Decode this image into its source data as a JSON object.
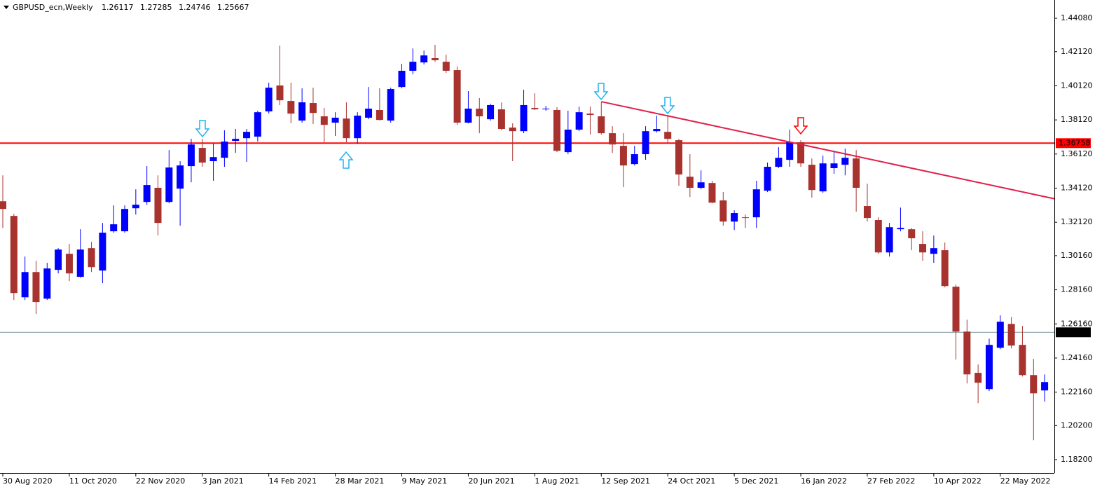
{
  "chart_data": {
    "type": "candlestick",
    "symbol": "GBPUSD_ecn,Weekly",
    "ohlc": [
      1.26117,
      1.27285,
      1.24746,
      1.25667
    ],
    "categories": [
      "30 Aug 2020",
      null,
      null,
      null,
      null,
      null,
      "11 Oct 2020",
      null,
      null,
      null,
      null,
      null,
      "22 Nov 2020",
      null,
      null,
      null,
      null,
      null,
      "3 Jan 2021",
      null,
      null,
      null,
      null,
      null,
      "14 Feb 2021",
      null,
      null,
      null,
      null,
      null,
      "28 Mar 2021",
      null,
      null,
      null,
      null,
      null,
      "9 May 2021",
      null,
      null,
      null,
      null,
      null,
      "20 Jun 2021",
      null,
      null,
      null,
      null,
      null,
      "1 Aug 2021",
      null,
      null,
      null,
      null,
      null,
      "12 Sep 2021",
      null,
      null,
      null,
      null,
      null,
      "24 Oct 2021",
      null,
      null,
      null,
      null,
      null,
      "5 Dec 2021",
      null,
      null,
      null,
      null,
      null,
      "16 Jan 2022",
      null,
      null,
      null,
      null,
      null,
      "27 Feb 2022",
      null,
      null,
      null,
      null,
      null,
      "10 Apr 2022",
      null,
      null,
      null,
      null,
      null,
      "22 May 2022",
      null,
      null,
      null,
      null
    ],
    "open": [
      1.3335,
      1.3249,
      1.2772,
      1.292,
      1.2764,
      1.2933,
      1.3027,
      1.2892,
      1.306,
      1.2929,
      1.3159,
      1.3159,
      1.3294,
      1.3331,
      1.3414,
      1.3331,
      1.3409,
      1.3541,
      1.3648,
      1.357,
      1.359,
      1.3689,
      1.3705,
      1.3714,
      1.3862,
      1.4014,
      1.3923,
      1.3808,
      1.3911,
      1.3833,
      1.3796,
      1.382,
      1.3705,
      1.3825,
      1.387,
      1.3808,
      1.4005,
      1.41,
      1.4149,
      1.4174,
      1.4153,
      1.4104,
      1.3796,
      1.3878,
      1.3816,
      1.3874,
      1.3767,
      1.3746,
      1.3882,
      1.3874,
      1.387,
      1.3623,
      1.3755,
      1.3849,
      1.3833,
      1.3734,
      1.366,
      1.3553,
      1.3611,
      1.3746,
      1.3742,
      1.3693,
      1.3479,
      1.3414,
      1.3442,
      1.334,
      1.3216,
      1.3241,
      1.3241,
      1.3397,
      1.3537,
      1.3578,
      1.3681,
      1.3549,
      1.3393,
      1.3529,
      1.3549,
      1.3586,
      1.3307,
      1.3225,
      1.3035,
      1.3171,
      1.3171,
      1.3085,
      1.3027,
      1.3048,
      1.2834,
      1.2571,
      1.2329,
      1.2234,
      1.2476,
      1.2616,
      1.2493,
      1.2316,
      1.2226
    ],
    "high": [
      1.3487,
      1.3261,
      1.3011,
      1.2986,
      1.2974,
      1.306,
      1.3085,
      1.3171,
      1.3097,
      1.3208,
      1.3311,
      1.3311,
      1.3405,
      1.3541,
      1.3487,
      1.3635,
      1.357,
      1.3701,
      1.3701,
      1.3672,
      1.3751,
      1.3759,
      1.3759,
      1.3866,
      1.403,
      1.4248,
      1.403,
      1.3997,
      1.4001,
      1.3882,
      1.3857,
      1.3915,
      1.3857,
      1.4005,
      1.3997,
      1.4001,
      1.4141,
      1.4231,
      1.4219,
      1.4252,
      1.4194,
      1.4125,
      1.3981,
      1.394,
      1.3907,
      1.3915,
      1.3792,
      1.3989,
      1.3968,
      1.3894,
      1.3886,
      1.3866,
      1.389,
      1.389,
      1.3919,
      1.3775,
      1.3734,
      1.366,
      1.3775,
      1.3837,
      1.3841,
      1.3701,
      1.3611,
      1.3516,
      1.3455,
      1.3389,
      1.3282,
      1.3257,
      1.3455,
      1.3562,
      1.3652,
      1.3755,
      1.3693,
      1.3586,
      1.3603,
      1.3631,
      1.3644,
      1.3635,
      1.3438,
      1.3241,
      1.3208,
      1.3298,
      1.3179,
      1.3159,
      1.3134,
      1.3093,
      1.2846,
      1.2641,
      1.2378,
      1.253,
      1.2666,
      1.2657,
      1.2604,
      1.2411,
      1.232
    ],
    "low": [
      1.3179,
      1.2756,
      1.2756,
      1.2674,
      1.2756,
      1.2912,
      1.2867,
      1.2887,
      1.292,
      1.2855,
      1.3151,
      1.3151,
      1.3257,
      1.3315,
      1.3134,
      1.3323,
      1.3192,
      1.3446,
      1.3537,
      1.3455,
      1.3537,
      1.3619,
      1.3566,
      1.3685,
      1.3849,
      1.3899,
      1.3792,
      1.3796,
      1.3788,
      1.3681,
      1.3718,
      1.3681,
      1.3672,
      1.3816,
      1.3808,
      1.3796,
      1.3997,
      1.4079,
      1.4137,
      1.4153,
      1.4088,
      1.3783,
      1.3792,
      1.3734,
      1.3808,
      1.3751,
      1.357,
      1.3734,
      1.387,
      1.3866,
      1.3623,
      1.3611,
      1.3746,
      1.3726,
      1.3726,
      1.3619,
      1.3418,
      1.3545,
      1.3578,
      1.3738,
      1.3672,
      1.3426,
      1.336,
      1.3405,
      1.3323,
      1.3192,
      1.3167,
      1.3179,
      1.3179,
      1.3389,
      1.3529,
      1.3537,
      1.3537,
      1.3356,
      1.3385,
      1.3496,
      1.3487,
      1.3274,
      1.3216,
      1.3027,
      1.3011,
      1.3159,
      1.3048,
      1.2986,
      1.2974,
      1.283,
      1.2407,
      1.2267,
      1.2152,
      1.2222,
      1.2468,
      1.2472,
      1.2308,
      1.1934,
      1.216
    ],
    "close": [
      1.329,
      1.2797,
      1.292,
      1.2744,
      1.2941,
      1.3052,
      1.2912,
      1.3052,
      1.2949,
      1.3151,
      1.32,
      1.329,
      1.3315,
      1.343,
      1.3208,
      1.3533,
      1.3545,
      1.3668,
      1.3562,
      1.3594,
      1.3685,
      1.3701,
      1.3742,
      1.3857,
      1.4001,
      1.3927,
      1.3849,
      1.3915,
      1.3853,
      1.3783,
      1.3825,
      1.3705,
      1.3837,
      1.3878,
      1.3812,
      1.3993,
      1.41,
      1.4153,
      1.419,
      1.4162,
      1.41,
      1.3796,
      1.3878,
      1.3833,
      1.3899,
      1.3759,
      1.3746,
      1.3899,
      1.3874,
      1.3878,
      1.3631,
      1.3755,
      1.3857,
      1.3841,
      1.3734,
      1.3668,
      1.3545,
      1.3611,
      1.3746,
      1.3759,
      1.3701,
      1.3492,
      1.3414,
      1.3446,
      1.3327,
      1.3216,
      1.3266,
      1.3237,
      1.3405,
      1.3537,
      1.359,
      1.3681,
      1.3557,
      1.3401,
      1.3557,
      1.3557,
      1.359,
      1.3414,
      1.3237,
      1.3035,
      1.3183,
      1.3179,
      1.3118,
      1.3035,
      1.306,
      1.2838,
      1.2571,
      1.232,
      1.2271,
      1.2493,
      1.2629,
      1.2489,
      1.2316,
      1.2209,
      1.2275
    ],
    "up_color": "#0000ff",
    "down_color": "#a8322d",
    "ylim": [
      1.1742,
      1.4515
    ],
    "yticks": [
      {
        "value": 1.4408,
        "label": "1.44080"
      },
      {
        "value": 1.4212,
        "label": "1.42120"
      },
      {
        "value": 1.4012,
        "label": "1.40120"
      },
      {
        "value": 1.3812,
        "label": "1.38120"
      },
      {
        "value": 1.3612,
        "label": "1.36120"
      },
      {
        "value": 1.3412,
        "label": "1.34120"
      },
      {
        "value": 1.3212,
        "label": "1.32120"
      },
      {
        "value": 1.3016,
        "label": "1.30160"
      },
      {
        "value": 1.2816,
        "label": "1.28160"
      },
      {
        "value": 1.2616,
        "label": "1.26160"
      },
      {
        "value": 1.2416,
        "label": "1.24160"
      },
      {
        "value": 1.2216,
        "label": "1.22160"
      },
      {
        "value": 1.202,
        "label": "1.20200"
      },
      {
        "value": 1.182,
        "label": "1.18200"
      }
    ],
    "hlines": [
      {
        "value": 1.36758,
        "color": "#ff0000",
        "label_background": "#ff0000"
      },
      {
        "value": 1.25667,
        "color": "#7f9a9a",
        "label_background": "#000000"
      }
    ],
    "trendline": {
      "start_index": 54,
      "start": 1.3919,
      "end_index": 94,
      "end": 1.3362,
      "color": "#e0204a"
    }
  }
}
